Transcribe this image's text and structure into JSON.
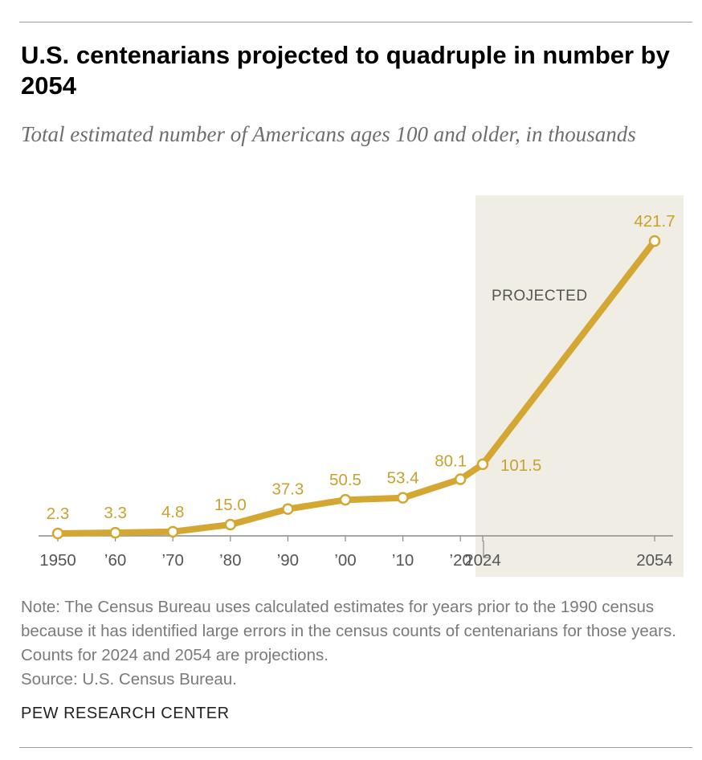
{
  "header": {
    "title": "U.S. centenarians projected to quadruple in number by 2054",
    "subtitle": "Total estimated number of Americans ages 100 and older, in thousands"
  },
  "chart_data": {
    "type": "line",
    "title": "U.S. centenarians projected to quadruple in number by 2054",
    "subtitle": "Total estimated number of Americans ages 100 and older, in thousands",
    "xlabel": "",
    "ylabel": "",
    "x": [
      1950,
      1960,
      1970,
      1980,
      1990,
      2000,
      2010,
      2020,
      2024,
      2054
    ],
    "tick_labels": [
      "1950",
      "’60",
      "’70",
      "’80",
      "’90",
      "’00",
      "’10",
      "’20",
      "2024",
      "2054"
    ],
    "values": [
      2.3,
      3.3,
      4.8,
      15.0,
      37.3,
      50.5,
      53.4,
      80.1,
      101.5,
      421.7
    ],
    "data_labels": [
      "2.3",
      "3.3",
      "4.8",
      "15.0",
      "37.3",
      "50.5",
      "53.4",
      "80.1",
      "101.5",
      "421.7"
    ],
    "ylim": [
      0,
      421.7
    ],
    "grid": false,
    "legend": "none",
    "projected_region": {
      "label": "PROJECTED",
      "from": 2024,
      "to": 2054
    },
    "colors": {
      "line": "#d4a733",
      "label": "#c9a12e",
      "shade": "#efede4",
      "axis": "#8c8c8c",
      "ticktext": "#555555",
      "projected_text": "#555555"
    }
  },
  "footer": {
    "note": "Note: The Census Bureau uses calculated estimates for years prior to the 1990 census because it has identified large errors in the census counts of centenarians for those years. Counts for 2024 and 2054 are projections.",
    "source": "Source: U.S. Census Bureau.",
    "brand": "PEW RESEARCH CENTER"
  }
}
